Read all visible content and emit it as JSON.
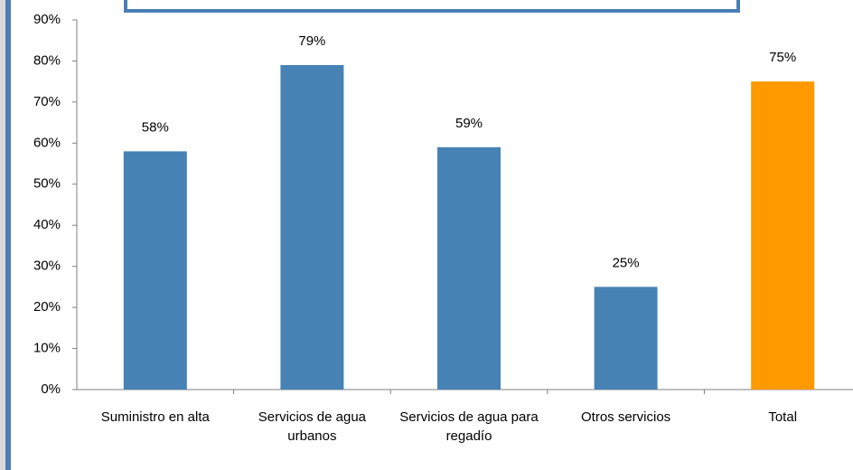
{
  "chart_data": {
    "type": "bar",
    "categories": [
      "Suministro en alta",
      "Servicios de agua urbanos",
      "Servicios de agua para regadío",
      "Otros servicios",
      "Total"
    ],
    "values": [
      58,
      79,
      59,
      25,
      75
    ],
    "value_labels": [
      "58%",
      "79%",
      "59%",
      "25%",
      "75%"
    ],
    "colors": [
      "#4682b4",
      "#4682b4",
      "#4682b4",
      "#4682b4",
      "#ff9900"
    ],
    "ylim": [
      0,
      90
    ],
    "yticks": [
      {
        "value": 0,
        "label": "0%"
      },
      {
        "value": 10,
        "label": "10%"
      },
      {
        "value": 20,
        "label": "20%"
      },
      {
        "value": 30,
        "label": "30%"
      },
      {
        "value": 40,
        "label": "40%"
      },
      {
        "value": 50,
        "label": "50%"
      },
      {
        "value": 60,
        "label": "60%"
      },
      {
        "value": 70,
        "label": "70%"
      },
      {
        "value": 80,
        "label": "80%"
      },
      {
        "value": 90,
        "label": "90%"
      }
    ]
  }
}
